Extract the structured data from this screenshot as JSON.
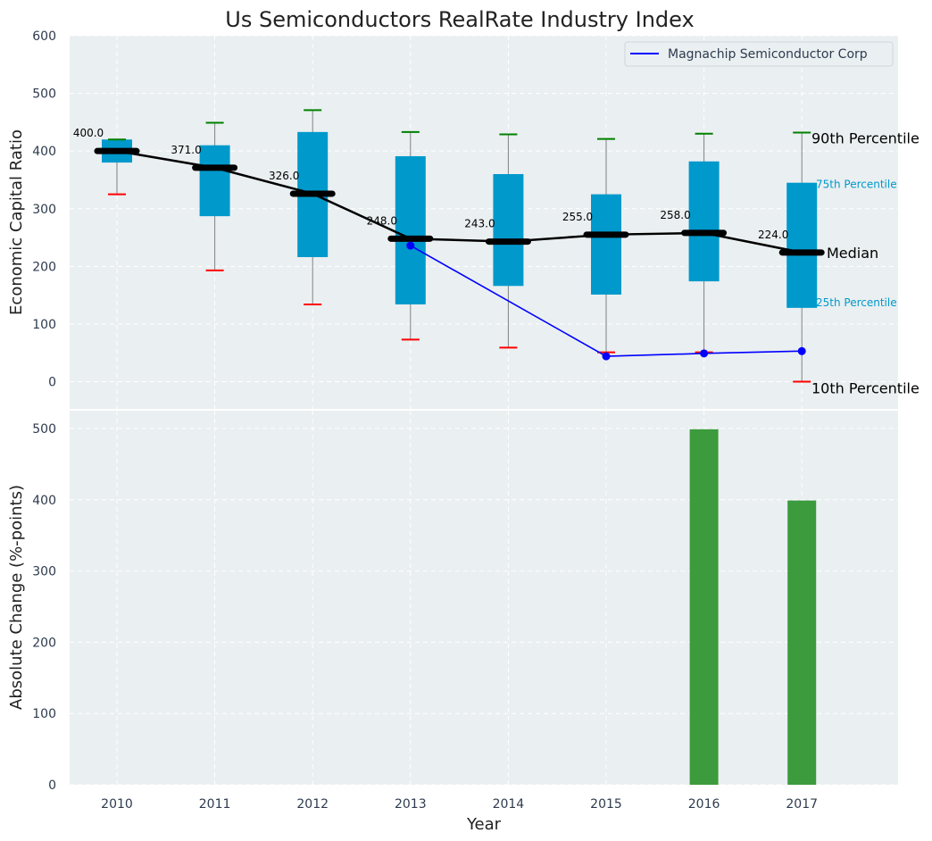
{
  "chart_data": [
    {
      "type": "box",
      "title": "Us Semiconductors RealRate Industry Index",
      "ylabel": "Economic Capital Ratio",
      "ylim": [
        -50,
        600
      ],
      "yticks": [
        0,
        100,
        200,
        300,
        400,
        500,
        600
      ],
      "categories": [
        "2010",
        "2011",
        "2012",
        "2013",
        "2014",
        "2015",
        "2016",
        "2017"
      ],
      "boxes": {
        "p10": [
          325,
          193,
          134,
          73,
          59,
          51,
          51,
          0
        ],
        "p25": [
          380,
          287,
          216,
          134,
          166,
          151,
          174,
          128
        ],
        "median": [
          400,
          371,
          326,
          248,
          243,
          255,
          258,
          224
        ],
        "p75": [
          420,
          410,
          433,
          391,
          360,
          325,
          382,
          345
        ],
        "p90": [
          420,
          449,
          471,
          433,
          429,
          421,
          430,
          432
        ]
      },
      "median_labels": [
        "400.0",
        "371.0",
        "326.0",
        "248.0",
        "243.0",
        "255.0",
        "258.0",
        "224.0"
      ],
      "series": [
        {
          "name": "Magnachip Semiconductor Corp",
          "years": [
            "2013",
            "2015",
            "2016",
            "2017"
          ],
          "values": [
            236,
            44,
            49,
            53
          ],
          "color": "#0000ff"
        }
      ],
      "annotations": {
        "p90": "90th Percentile",
        "p75": "75th Percentile",
        "median": "Median",
        "p25": "25th Percentile",
        "p10": "10th Percentile"
      },
      "colors": {
        "box": "#0099cc",
        "median": "#000000",
        "p90_cap": "#008000",
        "p10_cap": "#ff0000",
        "whisker": "#808080",
        "background": "#eaeff1"
      }
    },
    {
      "type": "bar",
      "ylabel": "Absolute Change (%-points)",
      "xlabel": "Year",
      "ylim": [
        0,
        520
      ],
      "yticks": [
        0,
        100,
        200,
        300,
        400,
        500
      ],
      "categories": [
        "2010",
        "2011",
        "2012",
        "2013",
        "2014",
        "2015",
        "2016",
        "2017"
      ],
      "values": [
        0,
        0,
        0,
        0,
        0,
        0,
        499,
        399
      ],
      "color": "#3c9b3c"
    }
  ]
}
